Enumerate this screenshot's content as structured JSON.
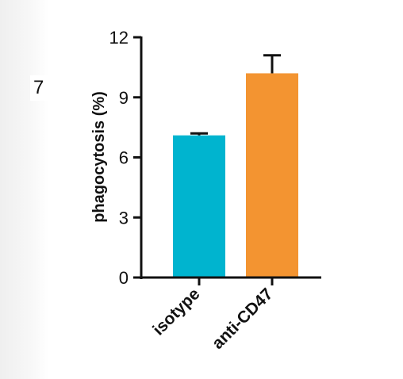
{
  "panel": {
    "label": "7"
  },
  "chart_data": {
    "type": "bar",
    "categories": [
      "isotype",
      "anti-CD47"
    ],
    "values": [
      7.1,
      10.2
    ],
    "errors": [
      0.1,
      0.9
    ],
    "colors": [
      "#00b4cf",
      "#f39431"
    ],
    "ylabel": "phagocytosis (%)",
    "ylim": [
      0,
      12
    ],
    "yticks": [
      0,
      3,
      6,
      9,
      12
    ],
    "ytick_labels": [
      "0",
      "3",
      "6",
      "9",
      "12"
    ],
    "grid": false
  }
}
